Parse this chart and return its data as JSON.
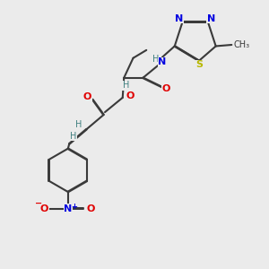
{
  "bg_color": "#ebebeb",
  "atom_colors": {
    "C": "#3a3a3a",
    "N": "#0000e0",
    "O": "#e00000",
    "S": "#b8b800",
    "H": "#408080"
  },
  "bond_color": "#3a3a3a",
  "figsize": [
    3.0,
    3.0
  ],
  "dpi": 100
}
